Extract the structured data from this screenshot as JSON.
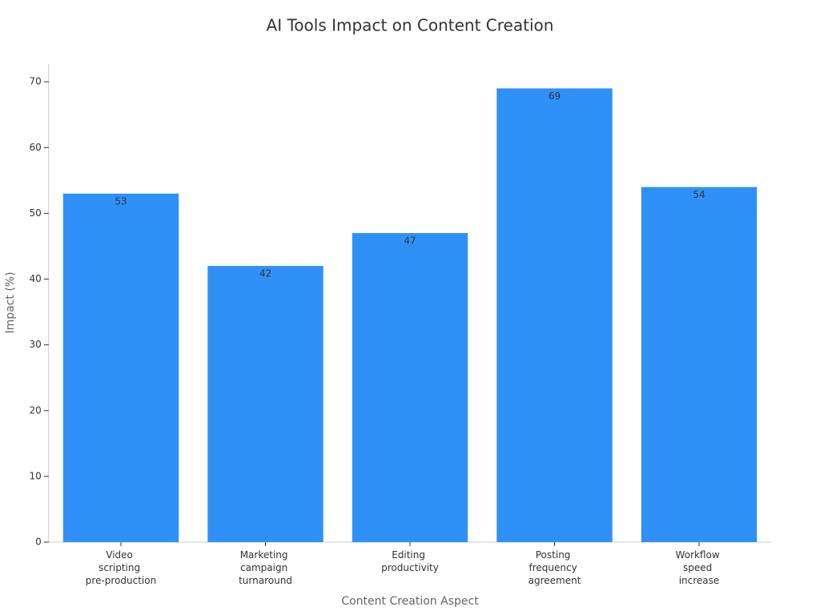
{
  "chart_data": {
    "type": "bar",
    "title": "AI Tools Impact on Content Creation",
    "x_label": "Content Creation Aspect",
    "y_label": "Impact (%)",
    "categories": [
      "Video scripting pre-production",
      "Marketing campaign turnaround",
      "Editing productivity",
      "Posting frequency agreement",
      "Workflow speed increase"
    ],
    "values": [
      53,
      42,
      47,
      69,
      54
    ],
    "color": "#2f91f7",
    "ylim": [
      0,
      72.7
    ],
    "yticks": [
      0,
      10,
      20,
      30,
      40,
      50,
      60,
      70
    ],
    "grid": false
  }
}
